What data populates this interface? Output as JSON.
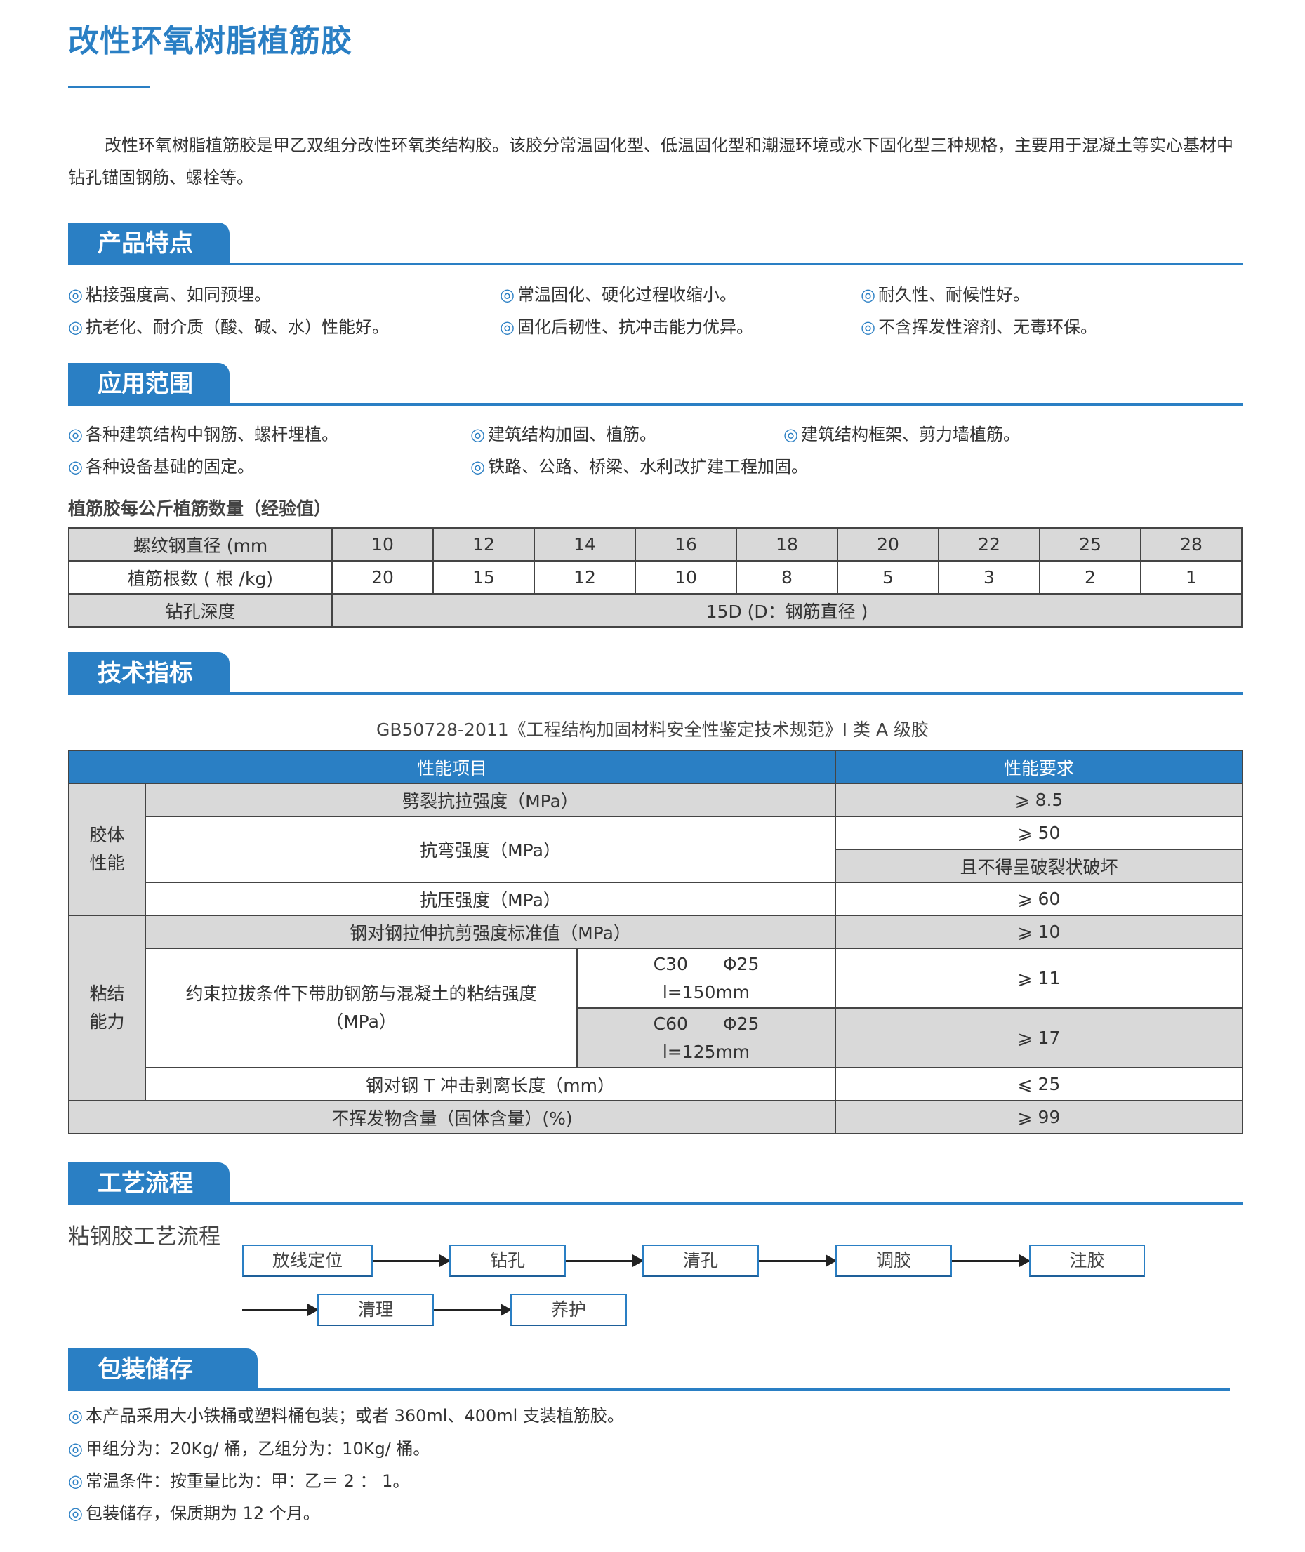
{
  "title": "改性环氧树脂植筋胶",
  "intro": "改性环氧树脂植筋胶是甲乙双组分改性环氧类结构胶。该胶分常温固化型、低温固化型和潮湿环境或水下固化型三种规格，主要用于混凝土等实心基材中钻孔锚固钢筋、螺栓等。",
  "bullet": "◎",
  "colors": {
    "accent": "#2a7fc4",
    "gray_cell": "#d9d9d9"
  },
  "features": {
    "heading": "产品特点",
    "items": [
      "粘接强度高、如同预埋。",
      "常温固化、硬化过程收缩小。",
      "耐久性、耐候性好。",
      "抗老化、耐介质（酸、碱、水）性能好。",
      "固化后韧性、抗冲击能力优异。",
      "不含挥发性溶剂、无毒环保。"
    ]
  },
  "applications": {
    "heading": "应用范围",
    "items": [
      "各种建筑结构中钢筋、螺杆埋植。",
      "建筑结构加固、植筋。",
      "建筑结构框架、剪力墙植筋。",
      "各种设备基础的固定。",
      "铁路、公路、桥梁、水利改扩建工程加固。"
    ]
  },
  "rebar_table": {
    "caption": "植筋胶每公斤植筋数量（经验值）",
    "row_labels": [
      "螺纹钢直径 (mm",
      "植筋根数 ( 根 /kg)",
      "钻孔深度"
    ],
    "diameters": [
      "10",
      "12",
      "14",
      "16",
      "18",
      "20",
      "22",
      "25",
      "28"
    ],
    "counts": [
      "20",
      "15",
      "12",
      "10",
      "8",
      "5",
      "3",
      "2",
      "1"
    ],
    "depth": "15D (D：钢筋直径 )"
  },
  "specs": {
    "heading": "技术指标",
    "caption": "GB50728-2011《工程结构加固材料安全性鉴定技术规范》I 类 A 级胶",
    "header": [
      "性能项目",
      "性能要求"
    ],
    "cat1": "胶体\n性能",
    "cat2": "粘结\n能力",
    "rows": {
      "split": {
        "item": "劈裂抗拉强度（MPa）",
        "req": "⩾ 8.5"
      },
      "bend": {
        "item": "抗弯强度（MPa）",
        "req1": "⩾ 50",
        "req2": "且不得呈破裂状破坏"
      },
      "compress": {
        "item": "抗压强度（MPa）",
        "req": "⩾ 60"
      },
      "shear": {
        "item": "钢对钢拉伸抗剪强度标准值（MPa）",
        "req": "⩾ 10"
      },
      "bond": {
        "item": "约束拉拔条件下带肋钢筋与混凝土的粘结强度\n（MPa）",
        "c30": "C30　　Φ25\nl=150mm",
        "c30_req": "⩾ 11",
        "c60": "C60　　Φ25\nl=125mm",
        "c60_req": "⩾ 17"
      },
      "peel": {
        "item": "钢对钢 T 冲击剥离长度（mm）",
        "req": "⩽ 25"
      },
      "solid": {
        "item": "不挥发物含量（固体含量）(%)",
        "req": "⩾ 99"
      }
    }
  },
  "process": {
    "heading": "工艺流程",
    "subtitle": "粘钢胶工艺流程",
    "steps": [
      "放线定位",
      "钻孔",
      "清孔",
      "调胶",
      "注胶",
      "清理",
      "养护"
    ]
  },
  "packaging": {
    "heading": "包装储存",
    "items": [
      "本产品采用大小铁桶或塑料桶包装；或者 360ml、400ml 支装植筋胶。",
      "甲组分为：20Kg/ 桶，乙组分为：10Kg/ 桶。",
      "常温条件：按重量比为：甲：乙＝ 2 ： 1。",
      "包装储存，保质期为 12 个月。"
    ]
  }
}
